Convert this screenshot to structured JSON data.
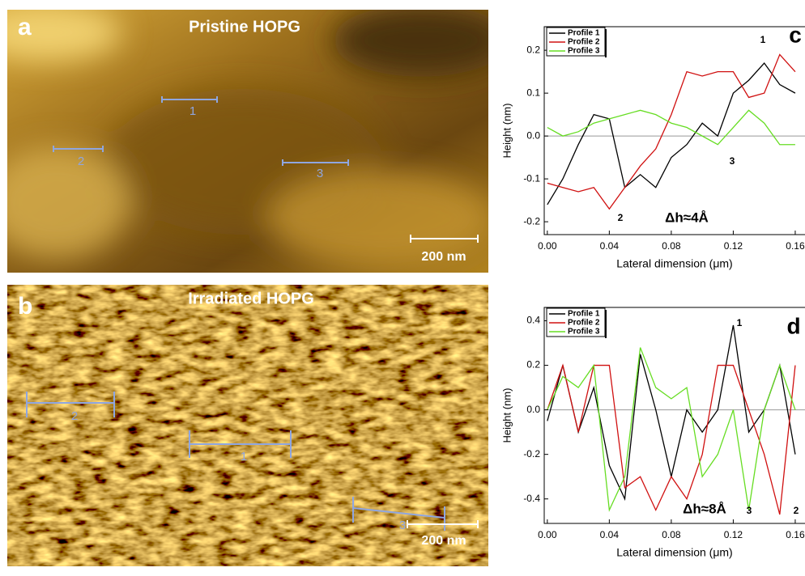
{
  "images": [
    {
      "letter": "a",
      "title": "Pristine HOPG",
      "scale_bar": "200 nm",
      "profile_labels": [
        "1",
        "2",
        "3"
      ]
    },
    {
      "letter": "b",
      "title": "Irradiated HOPG",
      "scale_bar": "200 nm",
      "profile_labels": [
        "1",
        "2",
        "3"
      ]
    }
  ],
  "chart_data": [
    {
      "type": "line",
      "letter": "c",
      "xlabel": "Lateral dimension (μm)",
      "ylabel": "Height (nm)",
      "xlim": [
        -0.002,
        0.1663
      ],
      "ylim": [
        -0.23,
        0.255
      ],
      "xticks": [
        {
          "value": 0,
          "label": "0.00"
        },
        {
          "value": 0.04,
          "label": "0.04"
        },
        {
          "value": 0.08,
          "label": "0.08"
        },
        {
          "value": 0.12,
          "label": "0.12"
        },
        {
          "value": 0.16,
          "label": "0.16"
        }
      ],
      "yticks": [
        -0.2,
        -0.1,
        {
          "value": 0,
          "label": "0.0"
        },
        0.1,
        0.2
      ],
      "x": [
        0,
        0.01,
        0.02,
        0.03,
        0.04,
        0.05,
        0.06,
        0.07,
        0.08,
        0.09,
        0.1,
        0.11,
        0.12,
        0.13,
        0.14,
        0.15,
        0.16
      ],
      "series": [
        {
          "name": "Profile 1",
          "color": "#000000",
          "values": [
            -0.16,
            -0.1,
            -0.02,
            0.05,
            0.04,
            -0.12,
            -0.09,
            -0.12,
            -0.05,
            -0.02,
            0.03,
            0.0,
            0.1,
            0.13,
            0.17,
            0.12,
            0.1
          ]
        },
        {
          "name": "Profile 2",
          "color": "#d01010",
          "values": [
            -0.11,
            -0.12,
            -0.13,
            -0.12,
            -0.17,
            -0.12,
            -0.07,
            -0.03,
            0.05,
            0.15,
            0.14,
            0.15,
            0.15,
            0.09,
            0.1,
            0.19,
            0.15
          ]
        },
        {
          "name": "Profile 3",
          "color": "#66dd22",
          "values": [
            0.02,
            0.0,
            0.01,
            0.03,
            0.04,
            0.05,
            0.06,
            0.05,
            0.03,
            0.02,
            0.0,
            -0.02,
            0.02,
            0.06,
            0.03,
            -0.02,
            -0.02
          ]
        }
      ],
      "annotations": [
        "1",
        "2",
        "3",
        "Δh≈4Å"
      ]
    },
    {
      "type": "line",
      "letter": "d",
      "xlabel": "Lateral dimension (μm)",
      "ylabel": "Height (nm)",
      "xlim": [
        -0.002,
        0.1663
      ],
      "ylim": [
        -0.51,
        0.46
      ],
      "xticks": [
        {
          "value": 0,
          "label": "0.00"
        },
        {
          "value": 0.04,
          "label": "0.04"
        },
        {
          "value": 0.08,
          "label": "0.08"
        },
        {
          "value": 0.12,
          "label": "0.12"
        },
        {
          "value": 0.16,
          "label": "0.16"
        }
      ],
      "yticks": [
        -0.4,
        -0.2,
        {
          "value": 0,
          "label": "0.0"
        },
        0.2,
        0.4
      ],
      "x": [
        0,
        0.01,
        0.02,
        0.03,
        0.04,
        0.05,
        0.06,
        0.07,
        0.08,
        0.09,
        0.1,
        0.11,
        0.12,
        0.13,
        0.14,
        0.15,
        0.16
      ],
      "series": [
        {
          "name": "Profile 1",
          "color": "#000000",
          "values": [
            -0.05,
            0.2,
            -0.1,
            0.1,
            -0.25,
            -0.4,
            0.25,
            0.0,
            -0.3,
            0.0,
            -0.1,
            0.0,
            0.38,
            -0.1,
            0.0,
            0.2,
            -0.2
          ]
        },
        {
          "name": "Profile 2",
          "color": "#d01010",
          "values": [
            0.0,
            0.2,
            -0.1,
            0.2,
            0.2,
            -0.35,
            -0.3,
            -0.45,
            -0.3,
            -0.4,
            -0.2,
            0.2,
            0.2,
            0.0,
            -0.2,
            -0.47,
            0.2
          ]
        },
        {
          "name": "Profile 3",
          "color": "#66dd22",
          "values": [
            0.0,
            0.15,
            0.1,
            0.2,
            -0.45,
            -0.3,
            0.28,
            0.1,
            0.05,
            0.1,
            -0.3,
            -0.2,
            0.0,
            -0.45,
            0.0,
            0.2,
            0.0
          ]
        }
      ],
      "annotations": [
        "1",
        "3",
        "2",
        "Δh≈8Å"
      ]
    }
  ]
}
